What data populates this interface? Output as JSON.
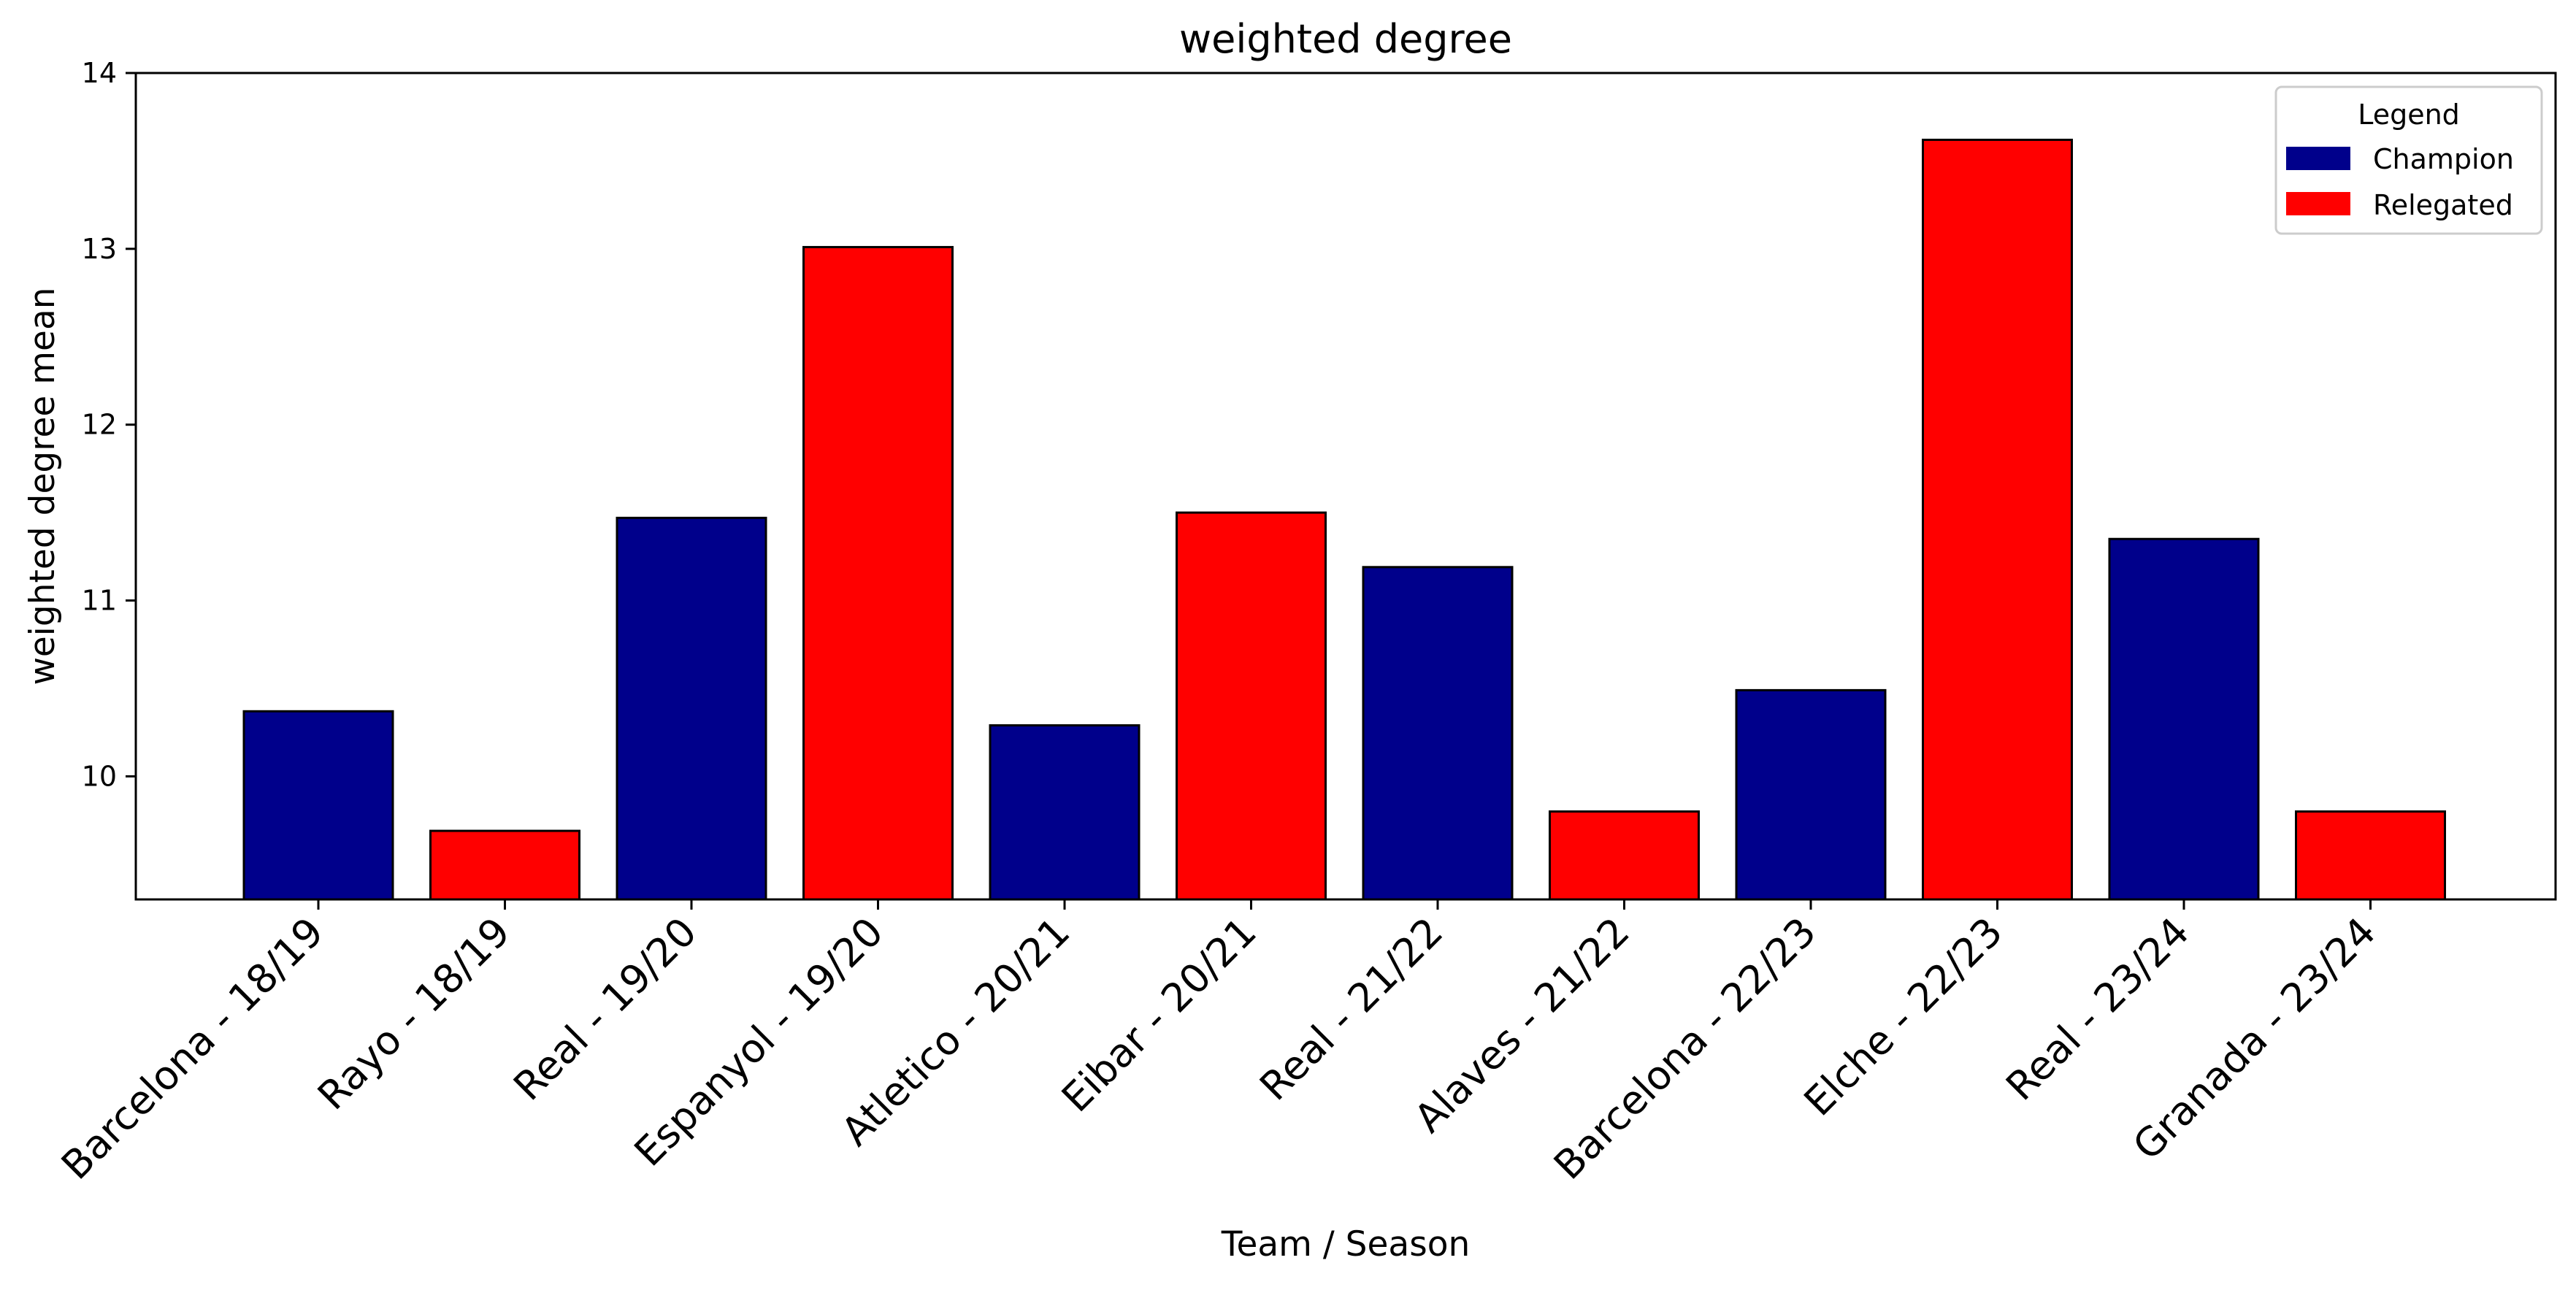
{
  "chart_data": {
    "type": "bar",
    "title": "weighted degree",
    "xlabel": "Team / Season",
    "ylabel": "weighted degree mean",
    "ylim": [
      9.3,
      14.0
    ],
    "yticks": [
      10,
      11,
      12,
      13,
      14
    ],
    "grid": false,
    "categories": [
      "Barcelona - 18/19",
      "Rayo - 18/19",
      "Real - 19/20",
      "Espanyol - 19/20",
      "Atletico - 20/21",
      "Eibar - 20/21",
      "Real - 21/22",
      "Alaves - 21/22",
      "Barcelona - 22/23",
      "Elche - 22/23",
      "Real - 23/24",
      "Granada - 23/24"
    ],
    "values": [
      10.37,
      9.69,
      11.47,
      13.01,
      10.29,
      11.5,
      11.19,
      9.8,
      10.49,
      13.62,
      11.35,
      9.8
    ],
    "groups": [
      "Champion",
      "Relegated",
      "Champion",
      "Relegated",
      "Champion",
      "Relegated",
      "Champion",
      "Relegated",
      "Champion",
      "Relegated",
      "Champion",
      "Relegated"
    ],
    "colors": {
      "Champion": "#00008b",
      "Relegated": "#ff0000"
    },
    "legend": {
      "title": "Legend",
      "placement": "top-right",
      "entries": [
        "Champion",
        "Relegated"
      ]
    }
  }
}
